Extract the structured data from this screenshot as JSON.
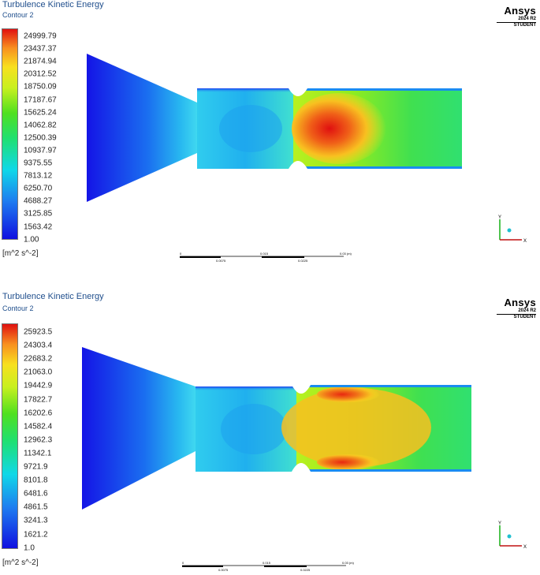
{
  "panels": [
    {
      "title": "Turbulence Kinetic Energy",
      "subtitle": "Contour 2",
      "legend_levels": [
        "24999.79",
        "23437.37",
        "21874.94",
        "20312.52",
        "18750.09",
        "17187.67",
        "15625.24",
        "14062.82",
        "12500.39",
        "10937.97",
        "9375.55",
        "7813.12",
        "6250.70",
        "4688.27",
        "3125.85",
        "1563.42",
        "1.00"
      ],
      "units": "[m^2 s^-2]",
      "brand": {
        "name": "Ansys",
        "version": "2024 R2",
        "edition": "STUDENT"
      },
      "scale": {
        "labels_top": [
          "0",
          "0.015",
          "0.03 (m)"
        ],
        "labels_bottom": [
          "0.0075",
          "0.0225"
        ]
      },
      "axes": {
        "y": "Y",
        "x": "X"
      },
      "colors": {
        "low": "#1010e0",
        "high": "#e01010"
      }
    },
    {
      "title": "Turbulence Kinetic Energy",
      "subtitle": "Contour 2",
      "legend_levels": [
        "25923.5",
        "24303.4",
        "22683.2",
        "21063.0",
        "19442.9",
        "17822.7",
        "16202.6",
        "14582.4",
        "12962.3",
        "11342.1",
        "9721.9",
        "8101.8",
        "6481.6",
        "4861.5",
        "3241.3",
        "1621.2",
        "1.0"
      ],
      "units": "[m^2 s^-2]",
      "brand": {
        "name": "Ansys",
        "version": "2024 R2",
        "edition": "STUDENT"
      },
      "scale": {
        "labels_top": [
          "0",
          "0.015",
          "0.03 (m)"
        ],
        "labels_bottom": [
          "0.0075",
          "0.0225"
        ]
      },
      "axes": {
        "y": "Y",
        "x": "X"
      },
      "colors": {
        "low": "#1010e0",
        "high": "#e01010"
      }
    }
  ]
}
